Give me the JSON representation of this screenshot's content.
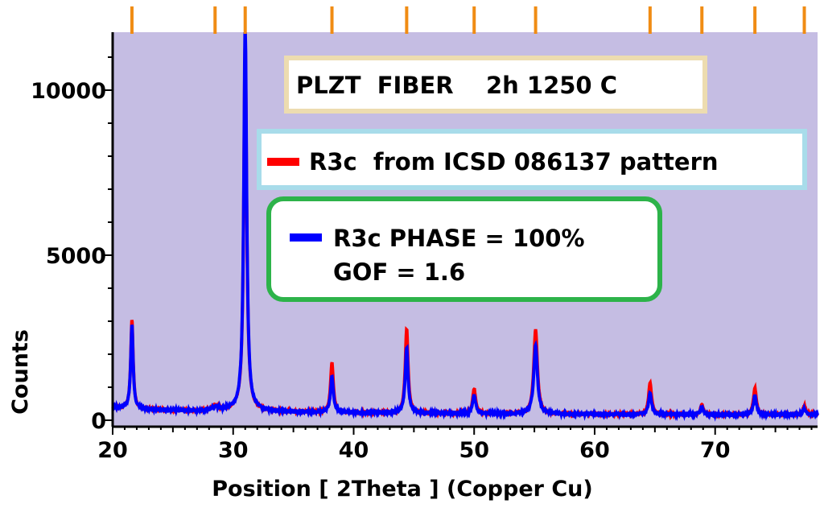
{
  "chart_data": {
    "type": "line",
    "xlabel": "Position [ 2Theta ] (Copper Cu)",
    "ylabel": "Counts",
    "xlim": [
      20,
      78.5
    ],
    "ylim": [
      0,
      12000
    ],
    "x_ticks": [
      20,
      30,
      40,
      50,
      60,
      70
    ],
    "y_ticks": [
      0,
      5000,
      10000
    ],
    "grid": false,
    "plot_background": "#c5bde3",
    "title_box": {
      "text": "PLZT  FIBER    2h 1250 C",
      "border_color": "#eddcb0"
    },
    "legend": [
      {
        "label": "R3c  from ICSD 086137 pattern",
        "color": "#ff0000",
        "border_color": "#a8dcea"
      },
      {
        "label": "R3c PHASE = 100%",
        "color": "#0000ff",
        "border_color": "#2db34a"
      }
    ],
    "annotation": "GOF = 1.6",
    "reference_marker_color": "#f08c14",
    "reference_markers": [
      21.6,
      28.5,
      31.0,
      38.2,
      44.4,
      50.0,
      55.1,
      64.6,
      68.9,
      73.3,
      77.4
    ],
    "baseline": [
      [
        20,
        390
      ],
      [
        22,
        330
      ],
      [
        25,
        300
      ],
      [
        28,
        280
      ],
      [
        30,
        300
      ],
      [
        35,
        250
      ],
      [
        40,
        230
      ],
      [
        50,
        200
      ],
      [
        60,
        180
      ],
      [
        70,
        170
      ],
      [
        78.5,
        170
      ]
    ],
    "peaks": [
      {
        "x": 21.6,
        "calc": 2700,
        "obs": 2550,
        "width": 0.12
      },
      {
        "x": 28.5,
        "calc": 120,
        "obs": 100,
        "width": 0.4
      },
      {
        "x": 31.0,
        "calc": 11200,
        "obs": 11800,
        "width": 0.14
      },
      {
        "x": 38.2,
        "calc": 1500,
        "obs": 1100,
        "width": 0.14
      },
      {
        "x": 44.4,
        "calc": 2550,
        "obs": 2000,
        "width": 0.14
      },
      {
        "x": 50.0,
        "calc": 750,
        "obs": 550,
        "width": 0.15
      },
      {
        "x": 55.1,
        "calc": 2550,
        "obs": 2100,
        "width": 0.18
      },
      {
        "x": 64.6,
        "calc": 950,
        "obs": 650,
        "width": 0.15
      },
      {
        "x": 68.9,
        "calc": 300,
        "obs": 220,
        "width": 0.15
      },
      {
        "x": 73.3,
        "calc": 800,
        "obs": 580,
        "width": 0.15
      },
      {
        "x": 77.4,
        "calc": 270,
        "obs": 180,
        "width": 0.15
      }
    ],
    "series": [
      {
        "name": "R3c  from ICSD 086137 pattern",
        "color": "#ff0000",
        "role": "calculated"
      },
      {
        "name": "R3c PHASE = 100%",
        "color": "#0000ff",
        "role": "observed"
      }
    ]
  }
}
